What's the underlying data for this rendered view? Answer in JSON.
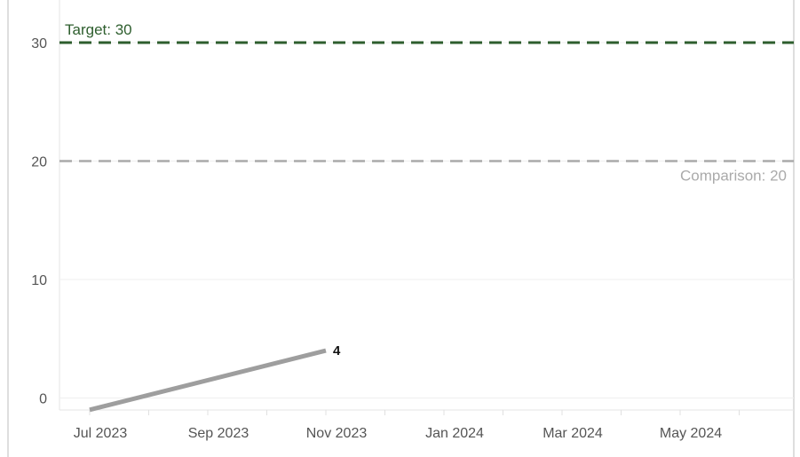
{
  "chart_data": {
    "type": "line",
    "title": "",
    "xlabel": "",
    "ylabel": "",
    "x_ticks": [
      "Jul 2023",
      "Sep 2023",
      "Nov 2023",
      "Jan 2024",
      "Mar 2024",
      "May 2024"
    ],
    "y_ticks": [
      "0",
      "10",
      "20",
      "30"
    ],
    "ylim": [
      -1,
      34
    ],
    "grid": true,
    "series": [
      {
        "color": "#9e9e9e",
        "points": [
          {
            "x": "2023-07-01",
            "y": -1
          },
          {
            "x": "2023-11-01",
            "y": 4
          }
        ]
      }
    ],
    "data_labels": [
      {
        "x": "2023-11-01",
        "y": 4,
        "text": "4"
      }
    ],
    "reference_lines": [
      {
        "value": 30,
        "label": "Target: 30",
        "color": "#2e5e2e",
        "style": "dashed"
      },
      {
        "value": 20,
        "label": "Comparison: 20",
        "color": "#aaaaaa",
        "style": "dashed"
      }
    ]
  }
}
